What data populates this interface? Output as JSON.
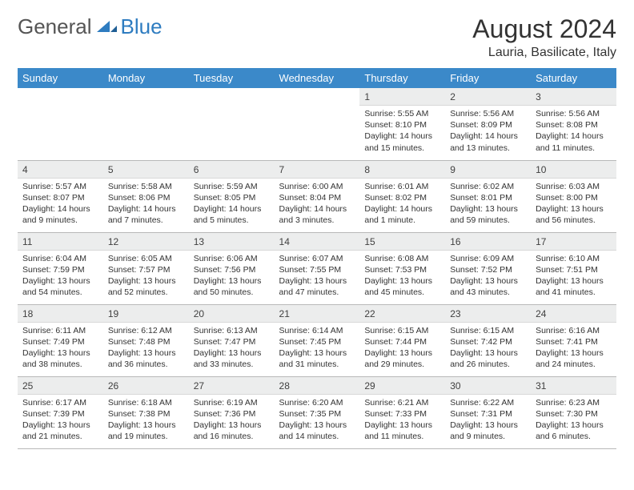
{
  "brand": {
    "word1": "General",
    "word2": "Blue"
  },
  "title": "August 2024",
  "location": "Lauria, Basilicate, Italy",
  "header_bg": "#3b89c9",
  "daynum_bg": "#eceded",
  "days_of_week": [
    "Sunday",
    "Monday",
    "Tuesday",
    "Wednesday",
    "Thursday",
    "Friday",
    "Saturday"
  ],
  "weeks": [
    [
      {
        "n": "",
        "sunrise": "",
        "sunset": "",
        "daylight": ""
      },
      {
        "n": "",
        "sunrise": "",
        "sunset": "",
        "daylight": ""
      },
      {
        "n": "",
        "sunrise": "",
        "sunset": "",
        "daylight": ""
      },
      {
        "n": "",
        "sunrise": "",
        "sunset": "",
        "daylight": ""
      },
      {
        "n": "1",
        "sunrise": "Sunrise: 5:55 AM",
        "sunset": "Sunset: 8:10 PM",
        "daylight": "Daylight: 14 hours and 15 minutes."
      },
      {
        "n": "2",
        "sunrise": "Sunrise: 5:56 AM",
        "sunset": "Sunset: 8:09 PM",
        "daylight": "Daylight: 14 hours and 13 minutes."
      },
      {
        "n": "3",
        "sunrise": "Sunrise: 5:56 AM",
        "sunset": "Sunset: 8:08 PM",
        "daylight": "Daylight: 14 hours and 11 minutes."
      }
    ],
    [
      {
        "n": "4",
        "sunrise": "Sunrise: 5:57 AM",
        "sunset": "Sunset: 8:07 PM",
        "daylight": "Daylight: 14 hours and 9 minutes."
      },
      {
        "n": "5",
        "sunrise": "Sunrise: 5:58 AM",
        "sunset": "Sunset: 8:06 PM",
        "daylight": "Daylight: 14 hours and 7 minutes."
      },
      {
        "n": "6",
        "sunrise": "Sunrise: 5:59 AM",
        "sunset": "Sunset: 8:05 PM",
        "daylight": "Daylight: 14 hours and 5 minutes."
      },
      {
        "n": "7",
        "sunrise": "Sunrise: 6:00 AM",
        "sunset": "Sunset: 8:04 PM",
        "daylight": "Daylight: 14 hours and 3 minutes."
      },
      {
        "n": "8",
        "sunrise": "Sunrise: 6:01 AM",
        "sunset": "Sunset: 8:02 PM",
        "daylight": "Daylight: 14 hours and 1 minute."
      },
      {
        "n": "9",
        "sunrise": "Sunrise: 6:02 AM",
        "sunset": "Sunset: 8:01 PM",
        "daylight": "Daylight: 13 hours and 59 minutes."
      },
      {
        "n": "10",
        "sunrise": "Sunrise: 6:03 AM",
        "sunset": "Sunset: 8:00 PM",
        "daylight": "Daylight: 13 hours and 56 minutes."
      }
    ],
    [
      {
        "n": "11",
        "sunrise": "Sunrise: 6:04 AM",
        "sunset": "Sunset: 7:59 PM",
        "daylight": "Daylight: 13 hours and 54 minutes."
      },
      {
        "n": "12",
        "sunrise": "Sunrise: 6:05 AM",
        "sunset": "Sunset: 7:57 PM",
        "daylight": "Daylight: 13 hours and 52 minutes."
      },
      {
        "n": "13",
        "sunrise": "Sunrise: 6:06 AM",
        "sunset": "Sunset: 7:56 PM",
        "daylight": "Daylight: 13 hours and 50 minutes."
      },
      {
        "n": "14",
        "sunrise": "Sunrise: 6:07 AM",
        "sunset": "Sunset: 7:55 PM",
        "daylight": "Daylight: 13 hours and 47 minutes."
      },
      {
        "n": "15",
        "sunrise": "Sunrise: 6:08 AM",
        "sunset": "Sunset: 7:53 PM",
        "daylight": "Daylight: 13 hours and 45 minutes."
      },
      {
        "n": "16",
        "sunrise": "Sunrise: 6:09 AM",
        "sunset": "Sunset: 7:52 PM",
        "daylight": "Daylight: 13 hours and 43 minutes."
      },
      {
        "n": "17",
        "sunrise": "Sunrise: 6:10 AM",
        "sunset": "Sunset: 7:51 PM",
        "daylight": "Daylight: 13 hours and 41 minutes."
      }
    ],
    [
      {
        "n": "18",
        "sunrise": "Sunrise: 6:11 AM",
        "sunset": "Sunset: 7:49 PM",
        "daylight": "Daylight: 13 hours and 38 minutes."
      },
      {
        "n": "19",
        "sunrise": "Sunrise: 6:12 AM",
        "sunset": "Sunset: 7:48 PM",
        "daylight": "Daylight: 13 hours and 36 minutes."
      },
      {
        "n": "20",
        "sunrise": "Sunrise: 6:13 AM",
        "sunset": "Sunset: 7:47 PM",
        "daylight": "Daylight: 13 hours and 33 minutes."
      },
      {
        "n": "21",
        "sunrise": "Sunrise: 6:14 AM",
        "sunset": "Sunset: 7:45 PM",
        "daylight": "Daylight: 13 hours and 31 minutes."
      },
      {
        "n": "22",
        "sunrise": "Sunrise: 6:15 AM",
        "sunset": "Sunset: 7:44 PM",
        "daylight": "Daylight: 13 hours and 29 minutes."
      },
      {
        "n": "23",
        "sunrise": "Sunrise: 6:15 AM",
        "sunset": "Sunset: 7:42 PM",
        "daylight": "Daylight: 13 hours and 26 minutes."
      },
      {
        "n": "24",
        "sunrise": "Sunrise: 6:16 AM",
        "sunset": "Sunset: 7:41 PM",
        "daylight": "Daylight: 13 hours and 24 minutes."
      }
    ],
    [
      {
        "n": "25",
        "sunrise": "Sunrise: 6:17 AM",
        "sunset": "Sunset: 7:39 PM",
        "daylight": "Daylight: 13 hours and 21 minutes."
      },
      {
        "n": "26",
        "sunrise": "Sunrise: 6:18 AM",
        "sunset": "Sunset: 7:38 PM",
        "daylight": "Daylight: 13 hours and 19 minutes."
      },
      {
        "n": "27",
        "sunrise": "Sunrise: 6:19 AM",
        "sunset": "Sunset: 7:36 PM",
        "daylight": "Daylight: 13 hours and 16 minutes."
      },
      {
        "n": "28",
        "sunrise": "Sunrise: 6:20 AM",
        "sunset": "Sunset: 7:35 PM",
        "daylight": "Daylight: 13 hours and 14 minutes."
      },
      {
        "n": "29",
        "sunrise": "Sunrise: 6:21 AM",
        "sunset": "Sunset: 7:33 PM",
        "daylight": "Daylight: 13 hours and 11 minutes."
      },
      {
        "n": "30",
        "sunrise": "Sunrise: 6:22 AM",
        "sunset": "Sunset: 7:31 PM",
        "daylight": "Daylight: 13 hours and 9 minutes."
      },
      {
        "n": "31",
        "sunrise": "Sunrise: 6:23 AM",
        "sunset": "Sunset: 7:30 PM",
        "daylight": "Daylight: 13 hours and 6 minutes."
      }
    ]
  ]
}
